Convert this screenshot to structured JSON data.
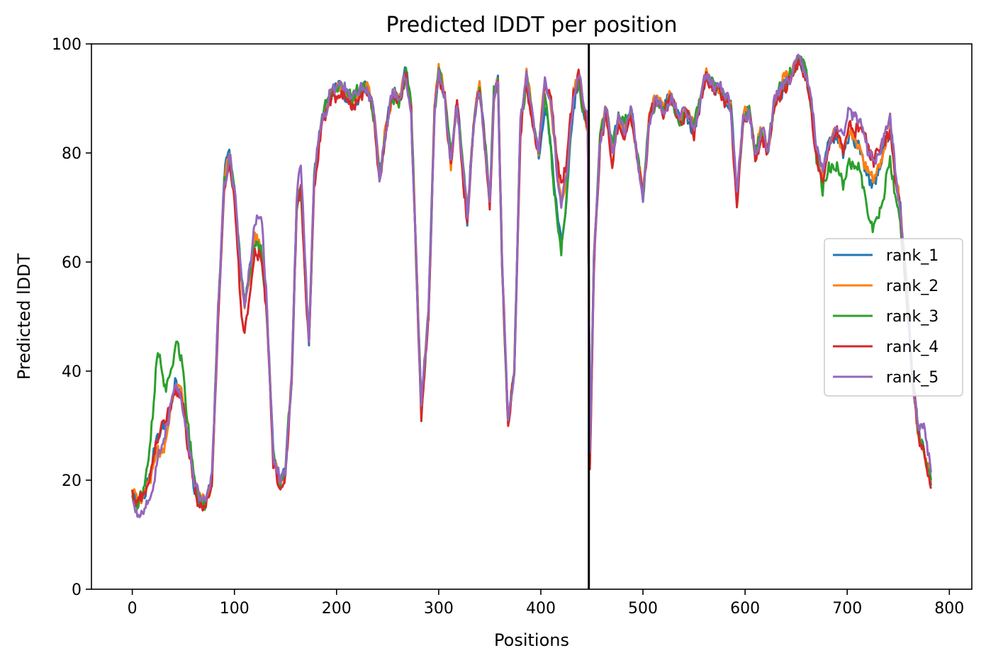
{
  "chart_data": {
    "type": "line",
    "title": "Predicted lDDT per position",
    "xlabel": "Positions",
    "ylabel": "Predicted lDDT",
    "xlim": [
      -40,
      822
    ],
    "ylim": [
      0,
      100
    ],
    "xticks": [
      0,
      100,
      200,
      300,
      400,
      500,
      600,
      700,
      800
    ],
    "yticks": [
      0,
      20,
      40,
      60,
      80,
      100
    ],
    "vline": 447,
    "grid": false,
    "legend_position": "center-right",
    "base_curve": [
      [
        0,
        18
      ],
      [
        5,
        16
      ],
      [
        12,
        18
      ],
      [
        18,
        21
      ],
      [
        24,
        28
      ],
      [
        30,
        30
      ],
      [
        36,
        33
      ],
      [
        42,
        38
      ],
      [
        48,
        36
      ],
      [
        54,
        28
      ],
      [
        60,
        20
      ],
      [
        66,
        16
      ],
      [
        72,
        16
      ],
      [
        78,
        20
      ],
      [
        84,
        50
      ],
      [
        90,
        74
      ],
      [
        95,
        79
      ],
      [
        100,
        73
      ],
      [
        105,
        60
      ],
      [
        110,
        52
      ],
      [
        115,
        58
      ],
      [
        120,
        64
      ],
      [
        126,
        62
      ],
      [
        132,
        50
      ],
      [
        138,
        24
      ],
      [
        145,
        19
      ],
      [
        150,
        22
      ],
      [
        156,
        38
      ],
      [
        161,
        70
      ],
      [
        165,
        74
      ],
      [
        170,
        55
      ],
      [
        173,
        45
      ],
      [
        178,
        75
      ],
      [
        185,
        85
      ],
      [
        195,
        91
      ],
      [
        205,
        92
      ],
      [
        215,
        89
      ],
      [
        222,
        91
      ],
      [
        230,
        92
      ],
      [
        236,
        88
      ],
      [
        242,
        75
      ],
      [
        248,
        84
      ],
      [
        255,
        91
      ],
      [
        262,
        90
      ],
      [
        268,
        95
      ],
      [
        273,
        88
      ],
      [
        278,
        60
      ],
      [
        283,
        33
      ],
      [
        290,
        50
      ],
      [
        296,
        88
      ],
      [
        300,
        95
      ],
      [
        306,
        90
      ],
      [
        312,
        78
      ],
      [
        318,
        89
      ],
      [
        322,
        80
      ],
      [
        328,
        68
      ],
      [
        334,
        85
      ],
      [
        340,
        92
      ],
      [
        346,
        80
      ],
      [
        350,
        70
      ],
      [
        354,
        90
      ],
      [
        358,
        93
      ],
      [
        362,
        60
      ],
      [
        368,
        30
      ],
      [
        374,
        40
      ],
      [
        380,
        85
      ],
      [
        386,
        94
      ],
      [
        392,
        86
      ],
      [
        398,
        80
      ],
      [
        404,
        93
      ],
      [
        410,
        88
      ],
      [
        415,
        78
      ],
      [
        420,
        70
      ],
      [
        425,
        75
      ],
      [
        432,
        90
      ],
      [
        437,
        94
      ],
      [
        442,
        88
      ],
      [
        446,
        85
      ],
      [
        448,
        24
      ],
      [
        452,
        60
      ],
      [
        458,
        82
      ],
      [
        464,
        88
      ],
      [
        470,
        80
      ],
      [
        476,
        86
      ],
      [
        482,
        84
      ],
      [
        488,
        88
      ],
      [
        494,
        80
      ],
      [
        500,
        72
      ],
      [
        506,
        86
      ],
      [
        512,
        90
      ],
      [
        520,
        88
      ],
      [
        528,
        90
      ],
      [
        536,
        86
      ],
      [
        542,
        88
      ],
      [
        550,
        84
      ],
      [
        556,
        90
      ],
      [
        562,
        94
      ],
      [
        570,
        92
      ],
      [
        578,
        91
      ],
      [
        586,
        88
      ],
      [
        592,
        72
      ],
      [
        598,
        86
      ],
      [
        604,
        88
      ],
      [
        610,
        80
      ],
      [
        616,
        84
      ],
      [
        622,
        80
      ],
      [
        628,
        88
      ],
      [
        636,
        92
      ],
      [
        644,
        94
      ],
      [
        652,
        97
      ],
      [
        658,
        96
      ],
      [
        664,
        90
      ],
      [
        670,
        80
      ],
      [
        676,
        75
      ],
      [
        682,
        82
      ],
      [
        690,
        84
      ],
      [
        696,
        80
      ],
      [
        702,
        84
      ],
      [
        708,
        82
      ],
      [
        714,
        80
      ],
      [
        720,
        76
      ],
      [
        726,
        74
      ],
      [
        732,
        78
      ],
      [
        738,
        82
      ],
      [
        742,
        84
      ],
      [
        746,
        78
      ],
      [
        752,
        70
      ],
      [
        758,
        55
      ],
      [
        764,
        38
      ],
      [
        770,
        28
      ],
      [
        776,
        24
      ],
      [
        782,
        20
      ]
    ],
    "series": [
      {
        "name": "rank_1",
        "color": "#1f77b4",
        "offset": 0.0,
        "amp": 2.0,
        "seed": 11,
        "features": [
          [
            415,
            12,
            -8
          ],
          [
            93,
            4,
            4
          ]
        ]
      },
      {
        "name": "rank_2",
        "color": "#ff7f0e",
        "offset": 0.4,
        "amp": 1.8,
        "seed": 23,
        "features": [
          [
            30,
            10,
            -4
          ],
          [
            448,
            3,
            -2
          ]
        ]
      },
      {
        "name": "rank_3",
        "color": "#2ca02c",
        "offset": 0.2,
        "amp": 2.2,
        "seed": 37,
        "features": [
          [
            25,
            8,
            14
          ],
          [
            45,
            8,
            8
          ],
          [
            415,
            10,
            -10
          ],
          [
            730,
            20,
            -8
          ],
          [
            690,
            15,
            -6
          ]
        ]
      },
      {
        "name": "rank_4",
        "color": "#d62728",
        "offset": -0.6,
        "amp": 2.0,
        "seed": 41,
        "features": [
          [
            110,
            8,
            -5
          ],
          [
            420,
            12,
            4
          ],
          [
            720,
            15,
            6
          ]
        ]
      },
      {
        "name": "rank_5",
        "color": "#9467bd",
        "offset": 0.3,
        "amp": 2.0,
        "seed": 53,
        "features": [
          [
            20,
            18,
            -4
          ],
          [
            125,
            6,
            6
          ],
          [
            165,
            6,
            4
          ],
          [
            715,
            20,
            5
          ],
          [
            776,
            6,
            4
          ]
        ]
      }
    ]
  }
}
